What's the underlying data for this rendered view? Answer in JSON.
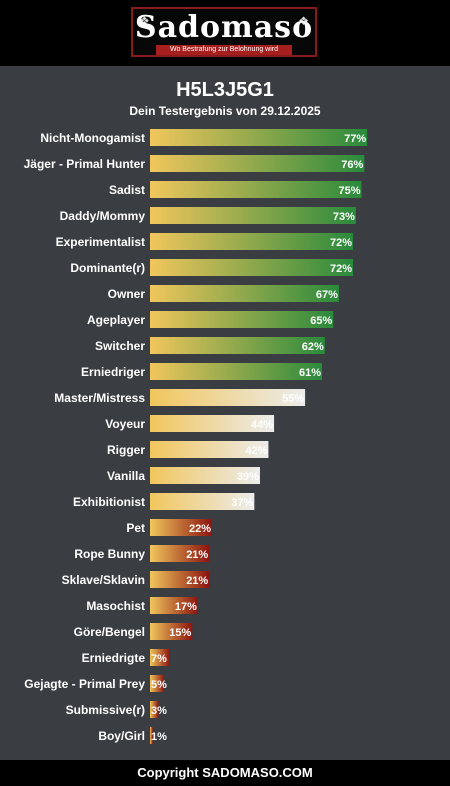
{
  "header": {
    "logo_text": "Sadomaso",
    "logo_tagline": "Wo Bestrafung zur Belohnung wird"
  },
  "title": "H5L3J5G1",
  "subtitle": "Dein Testergebnis von 29.12.2025",
  "colors": {
    "bar_start": "#f1c65c",
    "high_end": "#2a8a3c",
    "mid_end": "#ececec",
    "low_end": "#8c1410"
  },
  "chart_data": {
    "type": "bar",
    "orientation": "horizontal",
    "xlim": [
      0,
      100
    ],
    "grid": false,
    "categories": [
      "Nicht-Monogamist",
      "Jäger - Primal Hunter",
      "Sadist",
      "Daddy/Mommy",
      "Experimentalist",
      "Dominante(r)",
      "Owner",
      "Ageplayer",
      "Switcher",
      "Erniedriger",
      "Master/Mistress",
      "Voyeur",
      "Rigger",
      "Vanilla",
      "Exhibitionist",
      "Pet",
      "Rope Bunny",
      "Sklave/Sklavin",
      "Masochist",
      "Göre/Bengel",
      "Erniedrigte",
      "Gejagte - Primal Prey",
      "Submissive(r)",
      "Boy/Girl"
    ],
    "values": [
      77,
      76,
      75,
      73,
      72,
      72,
      67,
      65,
      62,
      61,
      55,
      44,
      42,
      39,
      37,
      22,
      21,
      21,
      17,
      15,
      7,
      5,
      3,
      1
    ],
    "value_labels": [
      "77%",
      "76%",
      "75%",
      "73%",
      "72%",
      "72%",
      "67%",
      "65%",
      "62%",
      "61%",
      "55%",
      "44%",
      "42%",
      "39%",
      "37%",
      "22%",
      "21%",
      "21%",
      "17%",
      "15%",
      "7%",
      "5%",
      "3%",
      "1%"
    ]
  },
  "footer": {
    "copyright": "Copyright SADOMASO.COM"
  }
}
